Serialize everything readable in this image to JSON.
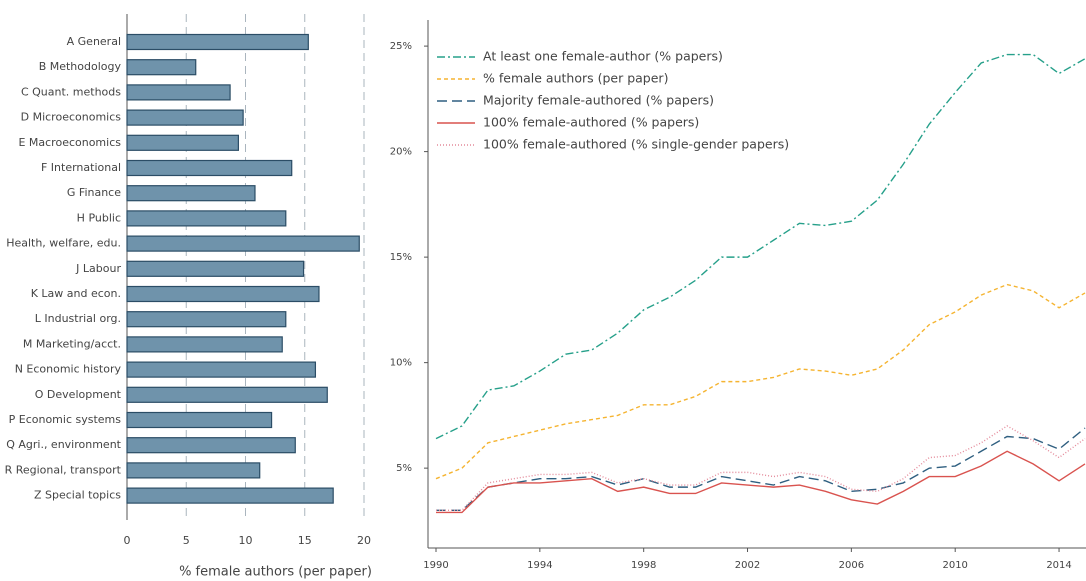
{
  "chart_data": [
    {
      "type": "barh",
      "categories": [
        "A General",
        "B Methodology",
        "C Quant. methods",
        "D Microeconomics",
        "E Macroeconomics",
        "F International",
        "G Finance",
        "H Public",
        "Health, welfare, edu.",
        "J Labour",
        "K Law and econ.",
        "L Industrial org.",
        "M Marketing/acct.",
        "N Economic history",
        "O Development",
        "P Economic systems",
        "Q Agri., environment",
        "R Regional, transport",
        "Z Special topics"
      ],
      "values": [
        15.3,
        5.8,
        8.7,
        9.8,
        9.4,
        13.9,
        10.8,
        13.4,
        19.6,
        14.9,
        16.2,
        13.4,
        13.1,
        15.9,
        16.9,
        12.2,
        14.2,
        11.2,
        17.4
      ],
      "color": "#6f93ab",
      "xlabel": "% female authors (per paper)",
      "xlim": [
        0,
        20
      ],
      "xticks": [
        0,
        5,
        10,
        15,
        20
      ],
      "grid": true
    },
    {
      "type": "line",
      "x": [
        1990,
        1991,
        1992,
        1993,
        1994,
        1995,
        1996,
        1997,
        1998,
        1999,
        2000,
        2001,
        2002,
        2003,
        2004,
        2005,
        2006,
        2007,
        2008,
        2009,
        2010,
        2011,
        2012,
        2013,
        2014,
        2015
      ],
      "series": [
        {
          "name": "At least one female-author (% papers)",
          "color": "#26a08a",
          "dash": "8 3 2 3",
          "values": [
            6.4,
            7.0,
            8.7,
            8.9,
            9.6,
            10.4,
            10.6,
            11.4,
            12.5,
            13.1,
            13.9,
            15.0,
            15.0,
            15.8,
            16.6,
            16.5,
            16.7,
            17.7,
            19.4,
            21.3,
            22.8,
            24.2,
            24.6,
            24.6,
            23.7,
            24.4
          ]
        },
        {
          "name": "% female authors (per paper)",
          "color": "#f5b431",
          "dash": "4 3",
          "values": [
            4.5,
            5.0,
            6.2,
            6.5,
            6.8,
            7.1,
            7.3,
            7.5,
            8.0,
            8.0,
            8.4,
            9.1,
            9.1,
            9.3,
            9.7,
            9.6,
            9.4,
            9.7,
            10.6,
            11.8,
            12.4,
            13.2,
            13.7,
            13.4,
            12.6,
            13.3
          ]
        },
        {
          "name": "Majority female-authored (% papers)",
          "color": "#2f5f80",
          "dash": "10 5",
          "values": [
            3.0,
            3.0,
            4.1,
            4.3,
            4.5,
            4.5,
            4.6,
            4.2,
            4.5,
            4.1,
            4.1,
            4.6,
            4.4,
            4.2,
            4.6,
            4.4,
            3.9,
            4.0,
            4.3,
            5.0,
            5.1,
            5.8,
            6.5,
            6.4,
            5.9,
            6.9
          ]
        },
        {
          "name": "100% female-authored (% papers)",
          "color": "#d9534f",
          "dash": "none",
          "values": [
            2.9,
            2.9,
            4.1,
            4.3,
            4.3,
            4.4,
            4.5,
            3.9,
            4.1,
            3.8,
            3.8,
            4.3,
            4.2,
            4.1,
            4.2,
            3.9,
            3.5,
            3.3,
            3.9,
            4.6,
            4.6,
            5.1,
            5.8,
            5.2,
            4.4,
            5.2
          ]
        },
        {
          "name": "100% female-authored (% single-gender papers)",
          "color": "#e48a9a",
          "dash": "1 2",
          "values": [
            3.0,
            3.0,
            4.3,
            4.5,
            4.7,
            4.7,
            4.8,
            4.3,
            4.5,
            4.2,
            4.2,
            4.8,
            4.8,
            4.6,
            4.8,
            4.6,
            4.0,
            3.9,
            4.5,
            5.5,
            5.6,
            6.2,
            7.0,
            6.3,
            5.5,
            6.4
          ]
        }
      ],
      "xlim": [
        1990,
        2015
      ],
      "xticks": [
        1990,
        1994,
        1998,
        2002,
        2006,
        2010,
        2014
      ],
      "ylim": [
        1.5,
        26
      ],
      "yticks": [
        {
          "value": 5,
          "label": "5%"
        },
        {
          "value": 10,
          "label": "10%"
        },
        {
          "value": 15,
          "label": "15%"
        },
        {
          "value": 20,
          "label": "20%"
        },
        {
          "value": 25,
          "label": "25%"
        }
      ],
      "legend": "upper left"
    }
  ]
}
